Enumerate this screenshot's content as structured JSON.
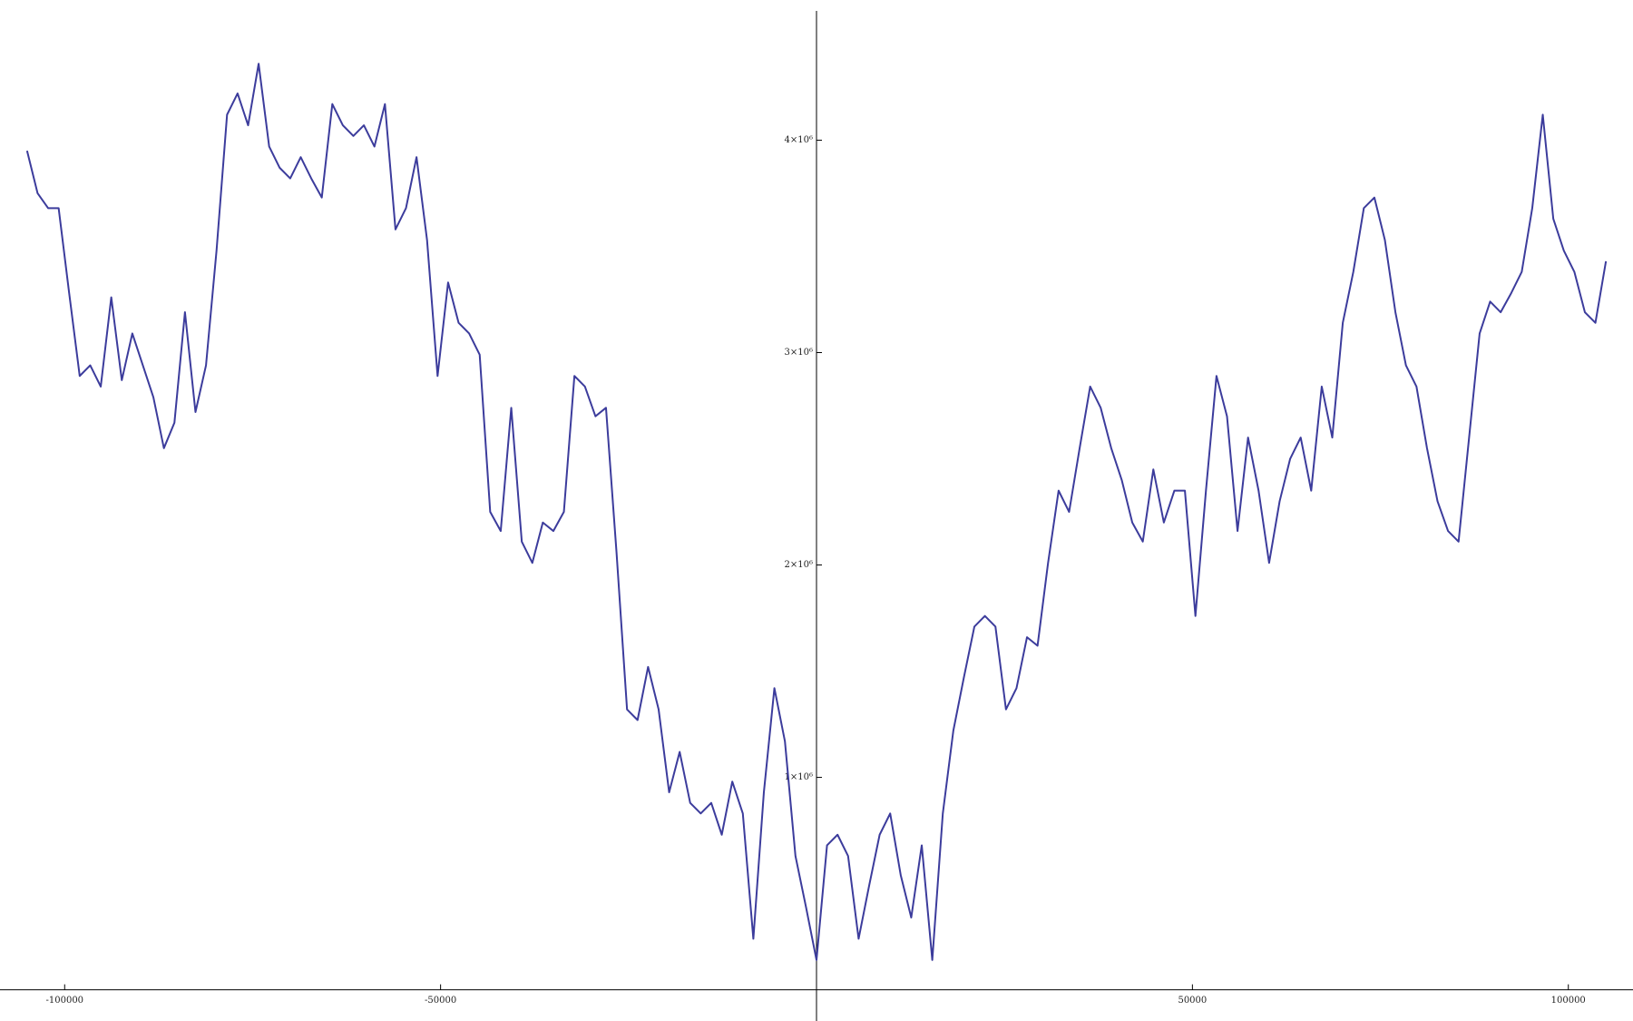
{
  "chart_data": {
    "type": "line",
    "color": "#3c3c9c",
    "xlim": [
      -108600,
      108600
    ],
    "ylim": [
      -147000,
      4660000
    ],
    "xticks": [
      -100000,
      -50000,
      50000,
      100000
    ],
    "yticks": [
      {
        "value": 1000000,
        "label": "1×10⁶"
      },
      {
        "value": 2000000,
        "label": "2×10⁶"
      },
      {
        "value": 3000000,
        "label": "3×10⁶"
      },
      {
        "value": 4000000,
        "label": "4×10⁶"
      }
    ],
    "x": [
      -105000,
      -103600,
      -102200,
      -100800,
      -99400,
      -98000,
      -96600,
      -95200,
      -93800,
      -92400,
      -91000,
      -89600,
      -88200,
      -86800,
      -85400,
      -84000,
      -82600,
      -81200,
      -79800,
      -78400,
      -77000,
      -75600,
      -74200,
      -72800,
      -71400,
      -70000,
      -68600,
      -67200,
      -65800,
      -64400,
      -63000,
      -61600,
      -60200,
      -58800,
      -57400,
      -56000,
      -54600,
      -53200,
      -51800,
      -50400,
      -49000,
      -47600,
      -46200,
      -44800,
      -43400,
      -42000,
      -40600,
      -39200,
      -37800,
      -36400,
      -35000,
      -33600,
      -32200,
      -30800,
      -29400,
      -28000,
      -26600,
      -25200,
      -23800,
      -22400,
      -21000,
      -19600,
      -18200,
      -16800,
      -15400,
      -14000,
      -12600,
      -11200,
      -9800,
      -8400,
      -7000,
      -5600,
      -4200,
      -2800,
      -1400,
      0,
      1400,
      2800,
      4200,
      5600,
      7000,
      8400,
      9800,
      11200,
      12600,
      14000,
      15400,
      16800,
      18200,
      19600,
      21000,
      22400,
      23800,
      25200,
      26600,
      28000,
      29400,
      30800,
      32200,
      33600,
      35000,
      36400,
      37800,
      39200,
      40600,
      42000,
      43400,
      44800,
      46200,
      47600,
      49000,
      50400,
      51800,
      53200,
      54600,
      56000,
      57400,
      58800,
      60200,
      61600,
      63000,
      64400,
      65800,
      67200,
      68600,
      70000,
      71400,
      72800,
      74200,
      75600,
      77000,
      78400,
      79800,
      81200,
      82600,
      84000,
      85400,
      86800,
      88200,
      89600,
      91000,
      92400,
      93800,
      95200,
      96600,
      98000,
      99400,
      100800,
      102200,
      103600,
      105000
    ],
    "values": [
      3950000,
      3750000,
      3680000,
      3680000,
      3280000,
      2890000,
      2940000,
      2840000,
      3260000,
      2870000,
      3090000,
      2940000,
      2790000,
      2550000,
      2670000,
      3190000,
      2720000,
      2940000,
      3480000,
      4120000,
      4220000,
      4070000,
      4360000,
      3970000,
      3870000,
      3820000,
      3920000,
      3820000,
      3730000,
      4170000,
      4070000,
      4020000,
      4070000,
      3970000,
      4170000,
      3580000,
      3680000,
      3920000,
      3530000,
      2890000,
      3330000,
      3140000,
      3090000,
      2990000,
      2250000,
      2160000,
      2740000,
      2110000,
      2010000,
      2200000,
      2160000,
      2250000,
      2890000,
      2840000,
      2700000,
      2740000,
      2060000,
      1320000,
      1270000,
      1520000,
      1320000,
      930000,
      1120000,
      880000,
      830000,
      880000,
      730000,
      980000,
      830000,
      240000,
      930000,
      1420000,
      1170000,
      630000,
      390000,
      140000,
      680000,
      730000,
      630000,
      240000,
      490000,
      730000,
      830000,
      540000,
      340000,
      680000,
      140000,
      830000,
      1220000,
      1470000,
      1710000,
      1760000,
      1710000,
      1320000,
      1420000,
      1660000,
      1620000,
      2010000,
      2350000,
      2250000,
      2550000,
      2840000,
      2740000,
      2550000,
      2400000,
      2200000,
      2110000,
      2450000,
      2200000,
      2350000,
      2350000,
      1760000,
      2350000,
      2890000,
      2700000,
      2160000,
      2600000,
      2350000,
      2010000,
      2300000,
      2500000,
      2600000,
      2350000,
      2840000,
      2600000,
      3140000,
      3380000,
      3680000,
      3730000,
      3530000,
      3190000,
      2940000,
      2840000,
      2550000,
      2300000,
      2160000,
      2110000,
      2600000,
      3090000,
      3240000,
      3190000,
      3280000,
      3380000,
      3680000,
      4120000,
      3630000,
      3480000,
      3380000,
      3190000,
      3140000,
      3430000
    ]
  }
}
